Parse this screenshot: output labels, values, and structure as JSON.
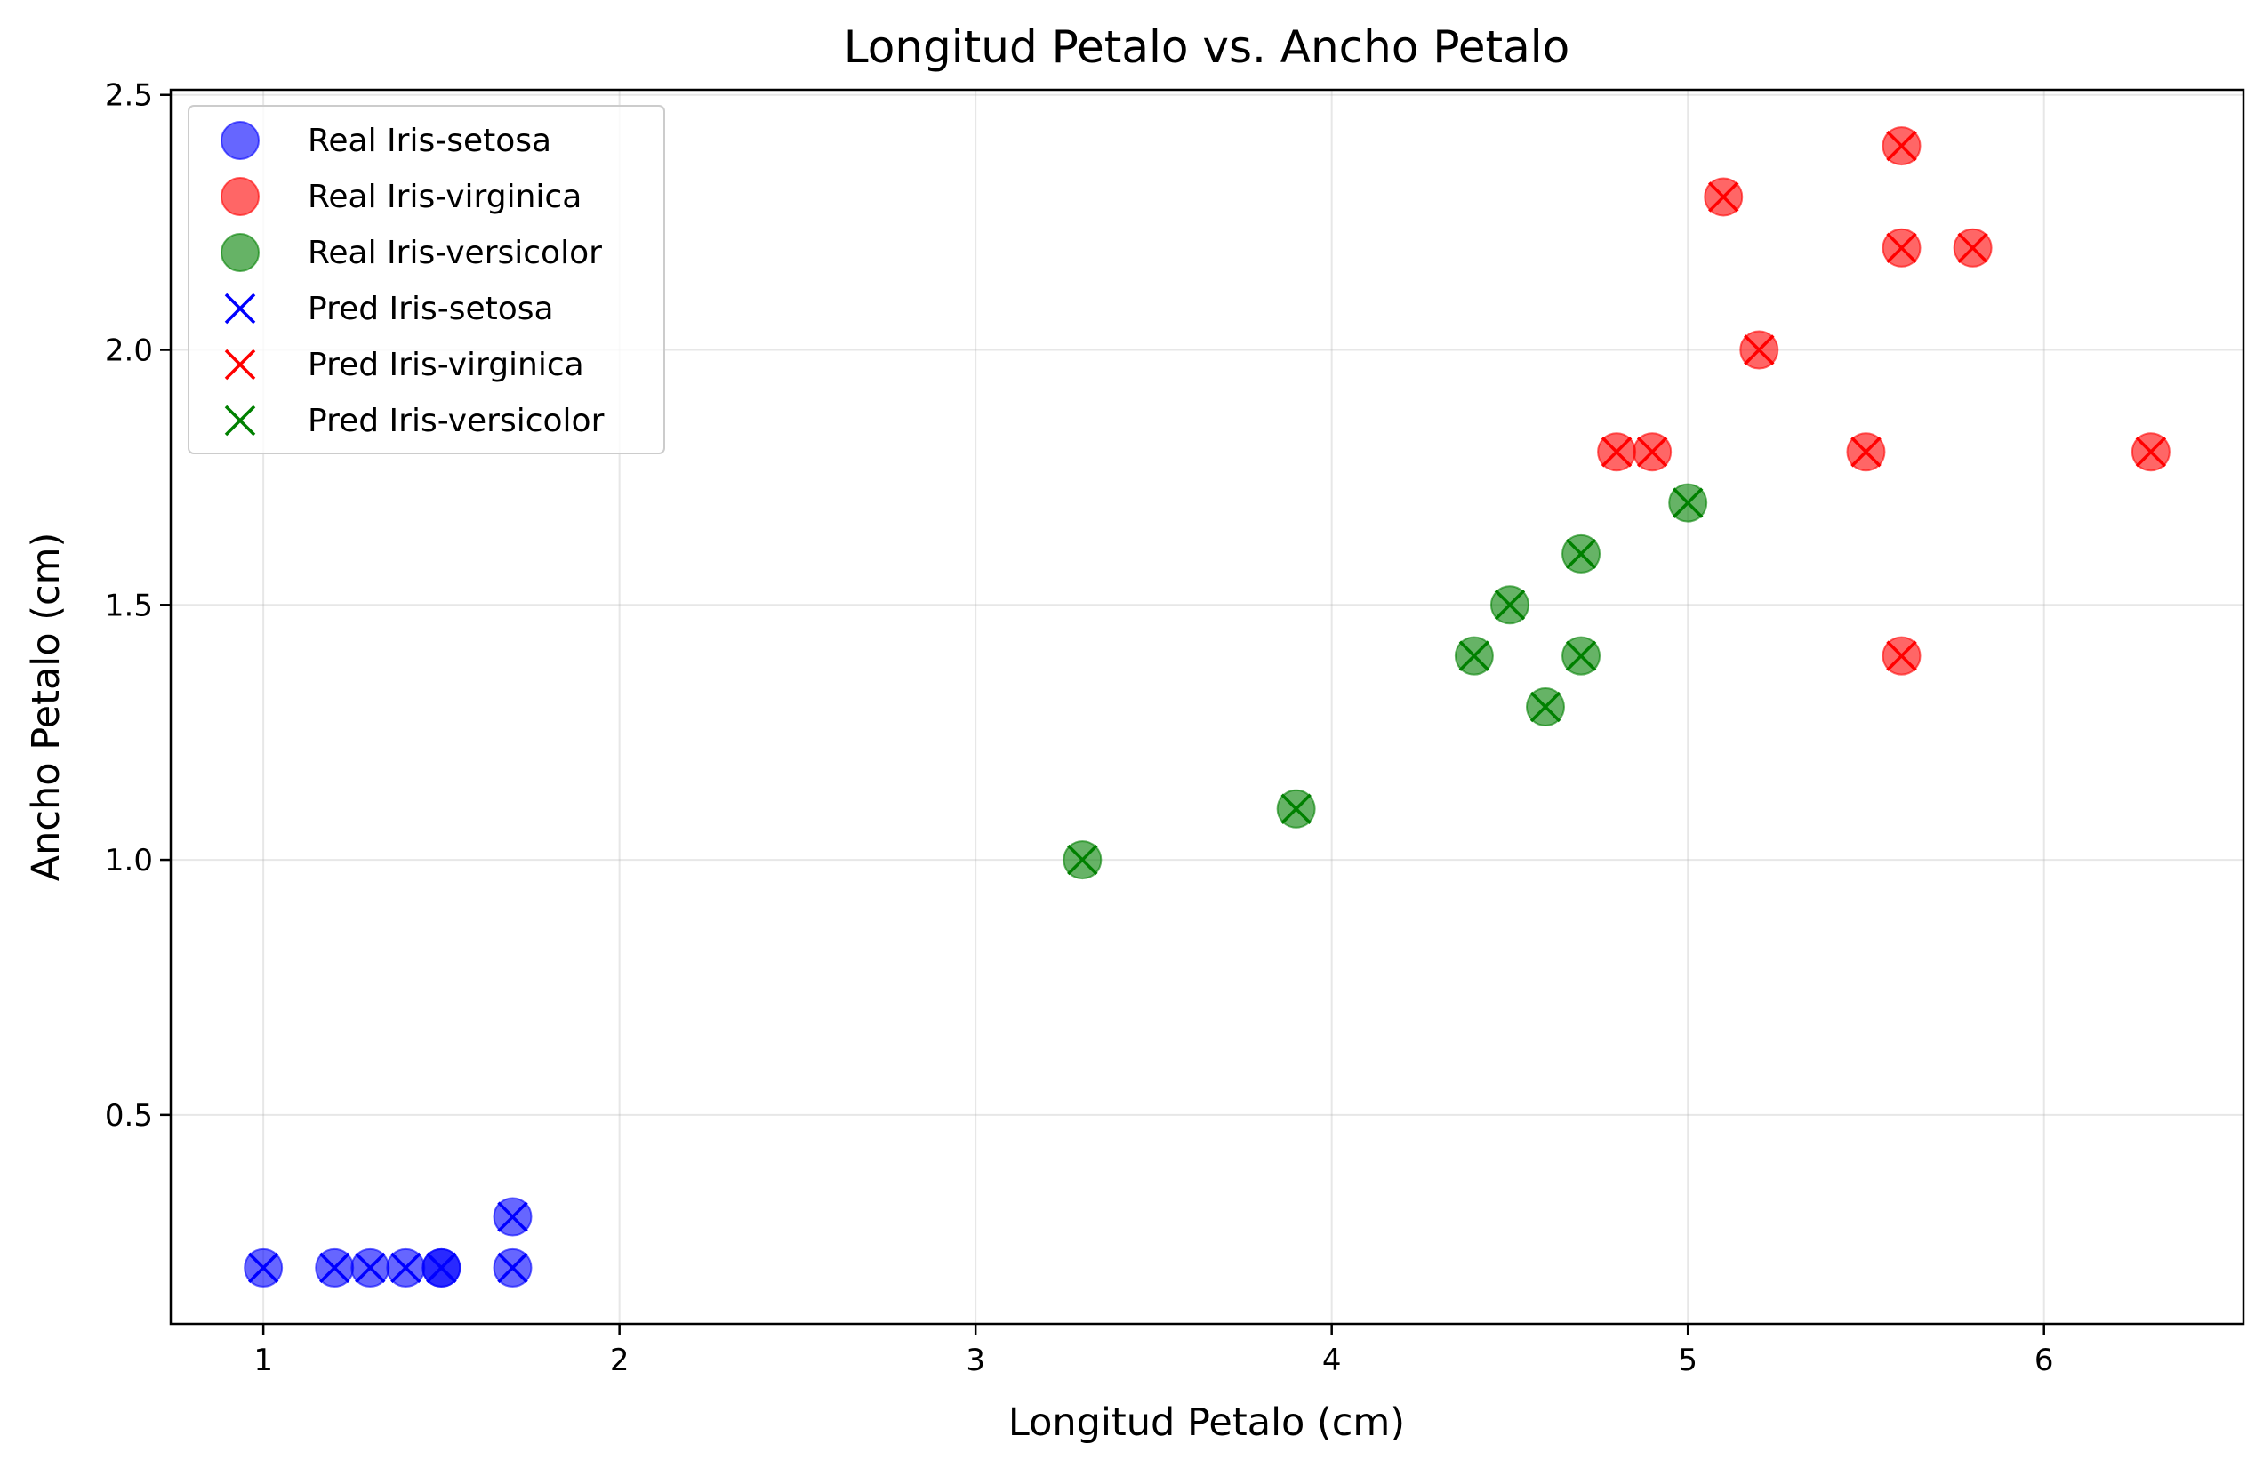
{
  "chart_data": {
    "type": "scatter",
    "title": "Longitud Petalo vs. Ancho Petalo",
    "xlabel": "Longitud Petalo (cm)",
    "ylabel": "Ancho Petalo (cm)",
    "xlim": [
      0.74,
      6.56
    ],
    "ylim": [
      0.09,
      2.51
    ],
    "xticks": [
      "1",
      "2",
      "3",
      "4",
      "5",
      "6"
    ],
    "yticks": [
      "0.5",
      "1.0",
      "1.5",
      "2.0",
      "2.5"
    ],
    "grid": true,
    "legend_position": "top-left",
    "series": [
      {
        "name": "Real Iris-setosa",
        "marker": "circle",
        "color": "#0000ff",
        "points": [
          [
            1.0,
            0.2
          ],
          [
            1.2,
            0.2
          ],
          [
            1.3,
            0.2
          ],
          [
            1.4,
            0.2
          ],
          [
            1.5,
            0.2
          ],
          [
            1.5,
            0.2
          ],
          [
            1.7,
            0.2
          ],
          [
            1.7,
            0.3
          ]
        ]
      },
      {
        "name": "Real Iris-virginica",
        "marker": "circle",
        "color": "#ff0000",
        "points": [
          [
            5.6,
            2.4
          ],
          [
            5.1,
            2.3
          ],
          [
            5.6,
            2.2
          ],
          [
            5.8,
            2.2
          ],
          [
            5.2,
            2.0
          ],
          [
            4.8,
            1.8
          ],
          [
            4.9,
            1.8
          ],
          [
            5.5,
            1.8
          ],
          [
            6.3,
            1.8
          ],
          [
            5.6,
            1.4
          ]
        ]
      },
      {
        "name": "Real Iris-versicolor",
        "marker": "circle",
        "color": "#008000",
        "points": [
          [
            5.0,
            1.7
          ],
          [
            4.7,
            1.6
          ],
          [
            4.5,
            1.5
          ],
          [
            4.4,
            1.4
          ],
          [
            4.7,
            1.4
          ],
          [
            4.6,
            1.3
          ],
          [
            3.9,
            1.1
          ],
          [
            3.3,
            1.0
          ]
        ]
      },
      {
        "name": "Pred Iris-setosa",
        "marker": "x",
        "color": "#0000ff",
        "points": [
          [
            1.0,
            0.2
          ],
          [
            1.2,
            0.2
          ],
          [
            1.3,
            0.2
          ],
          [
            1.4,
            0.2
          ],
          [
            1.5,
            0.2
          ],
          [
            1.5,
            0.2
          ],
          [
            1.7,
            0.2
          ],
          [
            1.7,
            0.3
          ]
        ]
      },
      {
        "name": "Pred Iris-virginica",
        "marker": "x",
        "color": "#ff0000",
        "points": [
          [
            5.6,
            2.4
          ],
          [
            5.1,
            2.3
          ],
          [
            5.6,
            2.2
          ],
          [
            5.8,
            2.2
          ],
          [
            5.2,
            2.0
          ],
          [
            4.8,
            1.8
          ],
          [
            4.9,
            1.8
          ],
          [
            5.5,
            1.8
          ],
          [
            6.3,
            1.8
          ],
          [
            5.6,
            1.4
          ]
        ]
      },
      {
        "name": "Pred Iris-versicolor",
        "marker": "x",
        "color": "#008000",
        "points": [
          [
            5.0,
            1.7
          ],
          [
            4.7,
            1.6
          ],
          [
            4.5,
            1.5
          ],
          [
            4.4,
            1.4
          ],
          [
            4.7,
            1.4
          ],
          [
            4.6,
            1.3
          ],
          [
            3.9,
            1.1
          ],
          [
            3.3,
            1.0
          ]
        ]
      }
    ]
  }
}
